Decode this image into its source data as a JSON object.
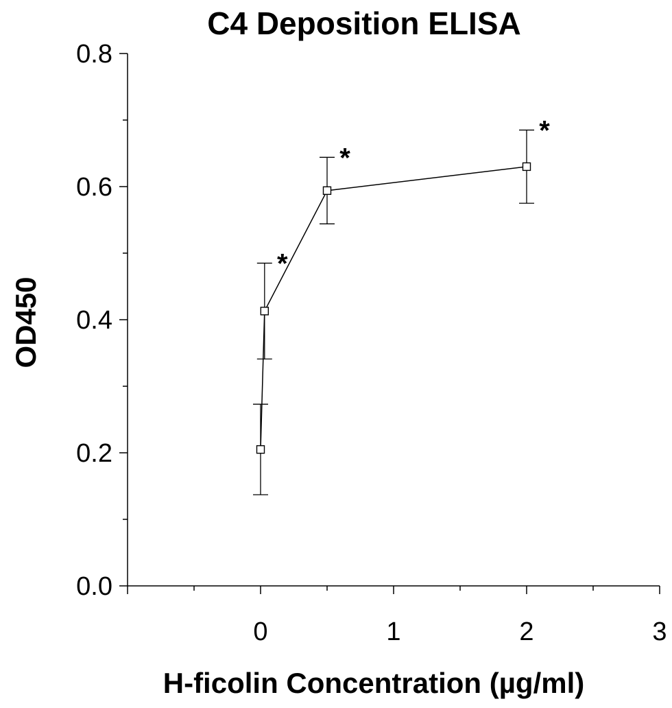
{
  "chart_data": {
    "type": "line",
    "title": "C4 Deposition ELISA",
    "xlabel": "H-ficolin Concentration (µg/ml)",
    "ylabel": "OD450",
    "xlim": [
      -1,
      3
    ],
    "ylim": [
      0,
      0.8
    ],
    "x_ticks": [
      "0",
      "1",
      "2",
      "3"
    ],
    "y_ticks": [
      "0.0",
      "0.2",
      "0.4",
      "0.6",
      "0.8"
    ],
    "grid": false,
    "series": [
      {
        "marker": "open-square",
        "x": [
          0,
          0.03,
          0.5,
          2
        ],
        "y": [
          0.205,
          0.413,
          0.594,
          0.63
        ],
        "error": [
          0.068,
          0.072,
          0.05,
          0.055
        ]
      }
    ],
    "annotations": [
      {
        "text": "*",
        "x": 0.03
      },
      {
        "text": "*",
        "x": 0.5
      },
      {
        "text": "*",
        "x": 2
      }
    ],
    "colors": {
      "line": "#000000",
      "marker_fill": "#ffffff"
    }
  }
}
